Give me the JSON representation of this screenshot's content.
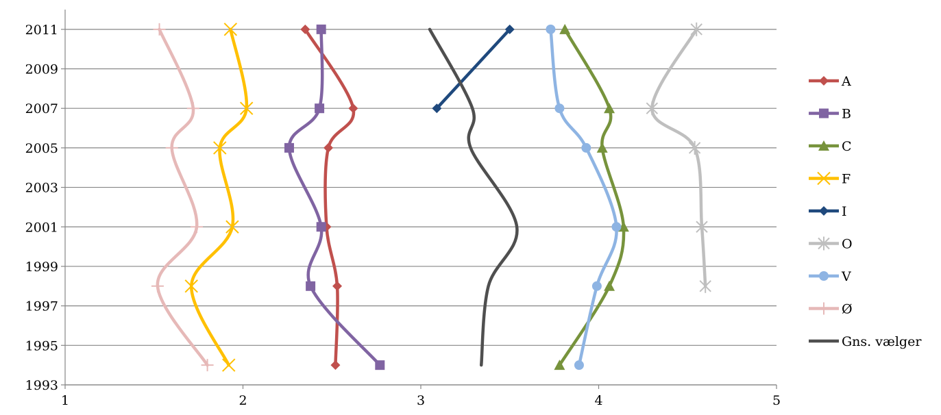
{
  "chart_data": {
    "type": "line",
    "title": "",
    "xlabel": "",
    "ylabel": "",
    "xlim": [
      1,
      5
    ],
    "ylim": [
      1993,
      2012
    ],
    "x_ticks": [
      1,
      2,
      3,
      4,
      5
    ],
    "y_ticks": [
      1993,
      1995,
      1997,
      1999,
      2001,
      2003,
      2005,
      2007,
      2009,
      2011
    ],
    "grid": "horizontal",
    "legend_position": "right",
    "series": [
      {
        "name": "A",
        "color": "#C0504D",
        "marker": "diamond",
        "points": [
          [
            2.52,
            1994
          ],
          [
            2.53,
            1998
          ],
          [
            2.47,
            2001
          ],
          [
            2.48,
            2005
          ],
          [
            2.62,
            2007
          ],
          [
            2.35,
            2011
          ]
        ]
      },
      {
        "name": "B",
        "color": "#8064A2",
        "marker": "square",
        "points": [
          [
            2.77,
            1994
          ],
          [
            2.38,
            1998
          ],
          [
            2.44,
            2001
          ],
          [
            2.26,
            2005
          ],
          [
            2.43,
            2007
          ],
          [
            2.44,
            2011
          ]
        ]
      },
      {
        "name": "C",
        "color": "#77933C",
        "marker": "triangle",
        "points": [
          [
            3.78,
            1994
          ],
          [
            4.06,
            1998
          ],
          [
            4.14,
            2001
          ],
          [
            4.02,
            2005
          ],
          [
            4.06,
            2007
          ],
          [
            3.81,
            2011
          ]
        ]
      },
      {
        "name": "F",
        "color": "#FFC000",
        "marker": "x",
        "points": [
          [
            1.92,
            1994
          ],
          [
            1.71,
            1998
          ],
          [
            1.94,
            2001
          ],
          [
            1.87,
            2005
          ],
          [
            2.02,
            2007
          ],
          [
            1.93,
            2011
          ]
        ]
      },
      {
        "name": "I",
        "color": "#1F497D",
        "marker": "diamond",
        "points": [
          [
            3.09,
            2007
          ],
          [
            3.5,
            2011
          ]
        ]
      },
      {
        "name": "O",
        "color": "#BFBFBF",
        "marker": "star",
        "points": [
          [
            4.6,
            1998
          ],
          [
            4.58,
            2001
          ],
          [
            4.54,
            2005
          ],
          [
            4.3,
            2007
          ],
          [
            4.55,
            2011
          ]
        ]
      },
      {
        "name": "V",
        "color": "#8EB4E3",
        "marker": "circle",
        "points": [
          [
            3.89,
            1994
          ],
          [
            3.99,
            1998
          ],
          [
            4.1,
            2001
          ],
          [
            3.93,
            2005
          ],
          [
            3.78,
            2007
          ],
          [
            3.73,
            2011
          ]
        ]
      },
      {
        "name": "Ø",
        "color": "#E6B9B8",
        "marker": "plus",
        "points": [
          [
            1.8,
            1994
          ],
          [
            1.52,
            1998
          ],
          [
            1.74,
            2001
          ],
          [
            1.6,
            2005
          ],
          [
            1.72,
            2007
          ],
          [
            1.53,
            2011
          ]
        ]
      },
      {
        "name": "Gns. vælger",
        "color": "#4F4F4F",
        "marker": "none",
        "points": [
          [
            3.34,
            1994
          ],
          [
            3.38,
            1998
          ],
          [
            3.54,
            2001
          ],
          [
            3.28,
            2005
          ],
          [
            3.29,
            2007
          ],
          [
            3.05,
            2011
          ]
        ]
      }
    ]
  }
}
